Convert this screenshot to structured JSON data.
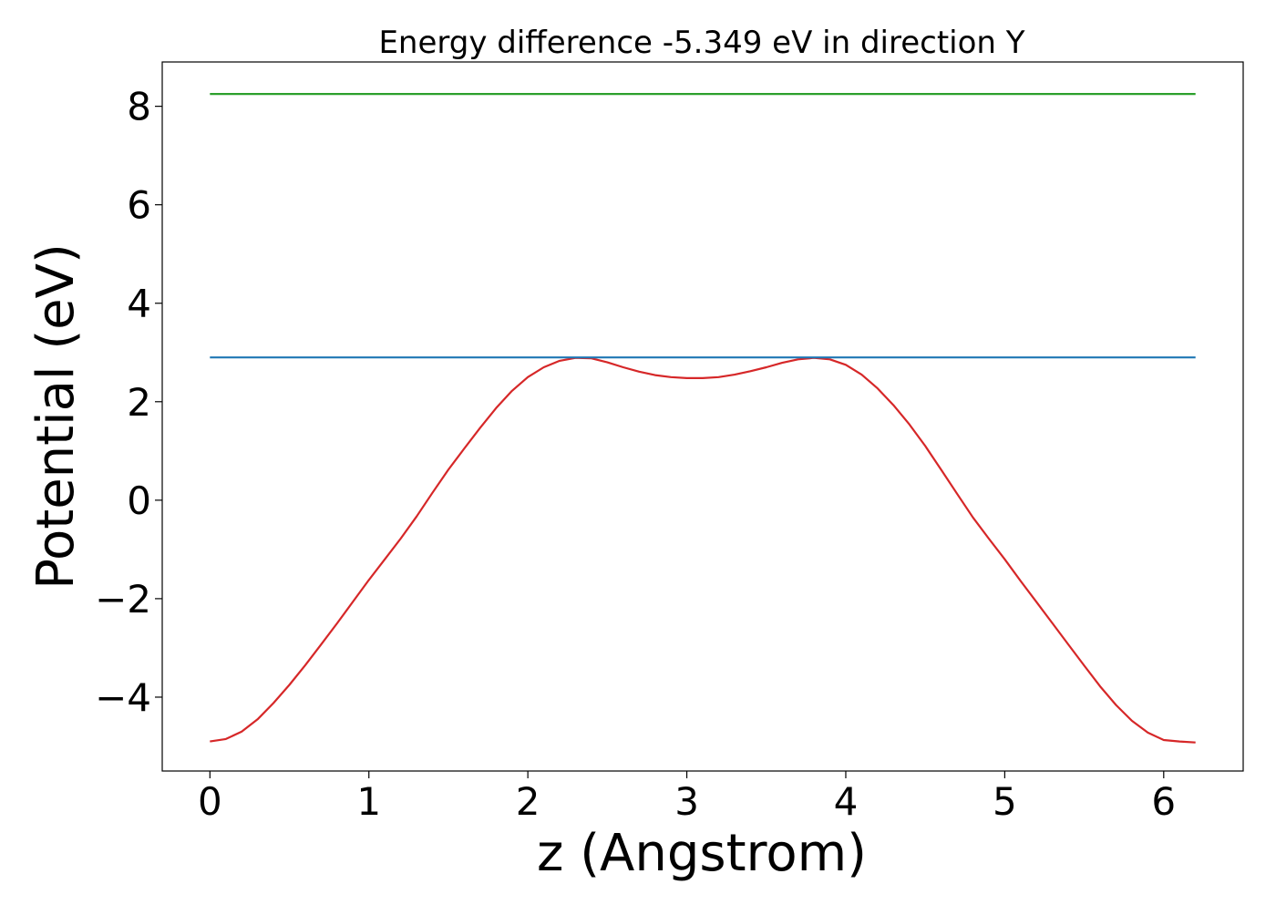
{
  "chart_data": {
    "type": "line",
    "title": "Energy difference -5.349 eV in direction Y",
    "xlabel": "z (Angstrom)",
    "ylabel": "Potential (eV)",
    "xlim": [
      -0.3,
      6.5
    ],
    "ylim": [
      -5.5,
      8.9
    ],
    "xticks": [
      0,
      1,
      2,
      3,
      4,
      5,
      6
    ],
    "xtick_labels": [
      "0",
      "1",
      "2",
      "3",
      "4",
      "5",
      "6"
    ],
    "yticks": [
      -4,
      -2,
      0,
      2,
      4,
      6,
      8
    ],
    "ytick_labels": [
      "−4",
      "−2",
      "0",
      "2",
      "4",
      "6",
      "8"
    ],
    "grid": false,
    "series": [
      {
        "color": "#d62728",
        "x": [
          0.0,
          0.1,
          0.2,
          0.3,
          0.4,
          0.5,
          0.6,
          0.7,
          0.8,
          0.9,
          1.0,
          1.1,
          1.2,
          1.3,
          1.4,
          1.5,
          1.6,
          1.7,
          1.8,
          1.9,
          2.0,
          2.1,
          2.2,
          2.3,
          2.4,
          2.5,
          2.6,
          2.7,
          2.8,
          2.9,
          3.0,
          3.1,
          3.2,
          3.3,
          3.4,
          3.5,
          3.6,
          3.7,
          3.8,
          3.9,
          4.0,
          4.1,
          4.2,
          4.3,
          4.4,
          4.5,
          4.6,
          4.7,
          4.8,
          4.9,
          5.0,
          5.1,
          5.2,
          5.3,
          5.4,
          5.5,
          5.6,
          5.7,
          5.8,
          5.9,
          6.0,
          6.1,
          6.2
        ],
        "y": [
          -4.9,
          -4.85,
          -4.7,
          -4.45,
          -4.12,
          -3.75,
          -3.35,
          -2.93,
          -2.5,
          -2.06,
          -1.62,
          -1.2,
          -0.78,
          -0.33,
          0.15,
          0.62,
          1.05,
          1.47,
          1.87,
          2.22,
          2.5,
          2.7,
          2.83,
          2.89,
          2.88,
          2.8,
          2.7,
          2.61,
          2.54,
          2.5,
          2.48,
          2.48,
          2.5,
          2.55,
          2.62,
          2.7,
          2.79,
          2.86,
          2.89,
          2.86,
          2.75,
          2.55,
          2.27,
          1.93,
          1.54,
          1.1,
          0.62,
          0.13,
          -0.35,
          -0.78,
          -1.2,
          -1.64,
          -2.07,
          -2.5,
          -2.93,
          -3.36,
          -3.78,
          -4.16,
          -4.48,
          -4.72,
          -4.87,
          -4.9,
          -4.92
        ]
      },
      {
        "color": "#1f77b4",
        "x": [
          0.0,
          6.2
        ],
        "y": [
          2.9,
          2.9
        ]
      },
      {
        "color": "#2ca02c",
        "x": [
          0.0,
          6.2
        ],
        "y": [
          8.25,
          8.25
        ]
      }
    ]
  }
}
